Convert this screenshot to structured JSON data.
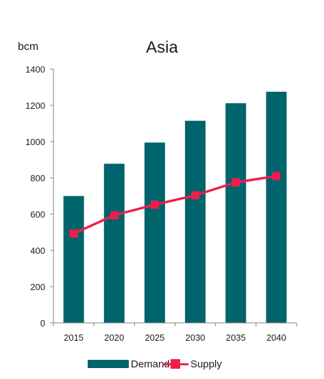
{
  "chart_data": {
    "type": "bar",
    "title": "Asia",
    "ylabel": "bcm",
    "xlabel": "",
    "categories": [
      "2015",
      "2020",
      "2025",
      "2030",
      "2035",
      "2040"
    ],
    "ylim": [
      0,
      1400
    ],
    "yticks": [
      0,
      200,
      400,
      600,
      800,
      1000,
      1200,
      1400
    ],
    "grid": false,
    "legend_position": "bottom",
    "series": [
      {
        "name": "Demand",
        "type": "bar",
        "color": "#00646C",
        "values": [
          700,
          878,
          995,
          1115,
          1212,
          1275
        ]
      },
      {
        "name": "Supply",
        "type": "line",
        "color": "#EE1E4C",
        "marker": "square",
        "values": [
          493,
          594,
          652,
          704,
          775,
          810
        ]
      }
    ]
  }
}
